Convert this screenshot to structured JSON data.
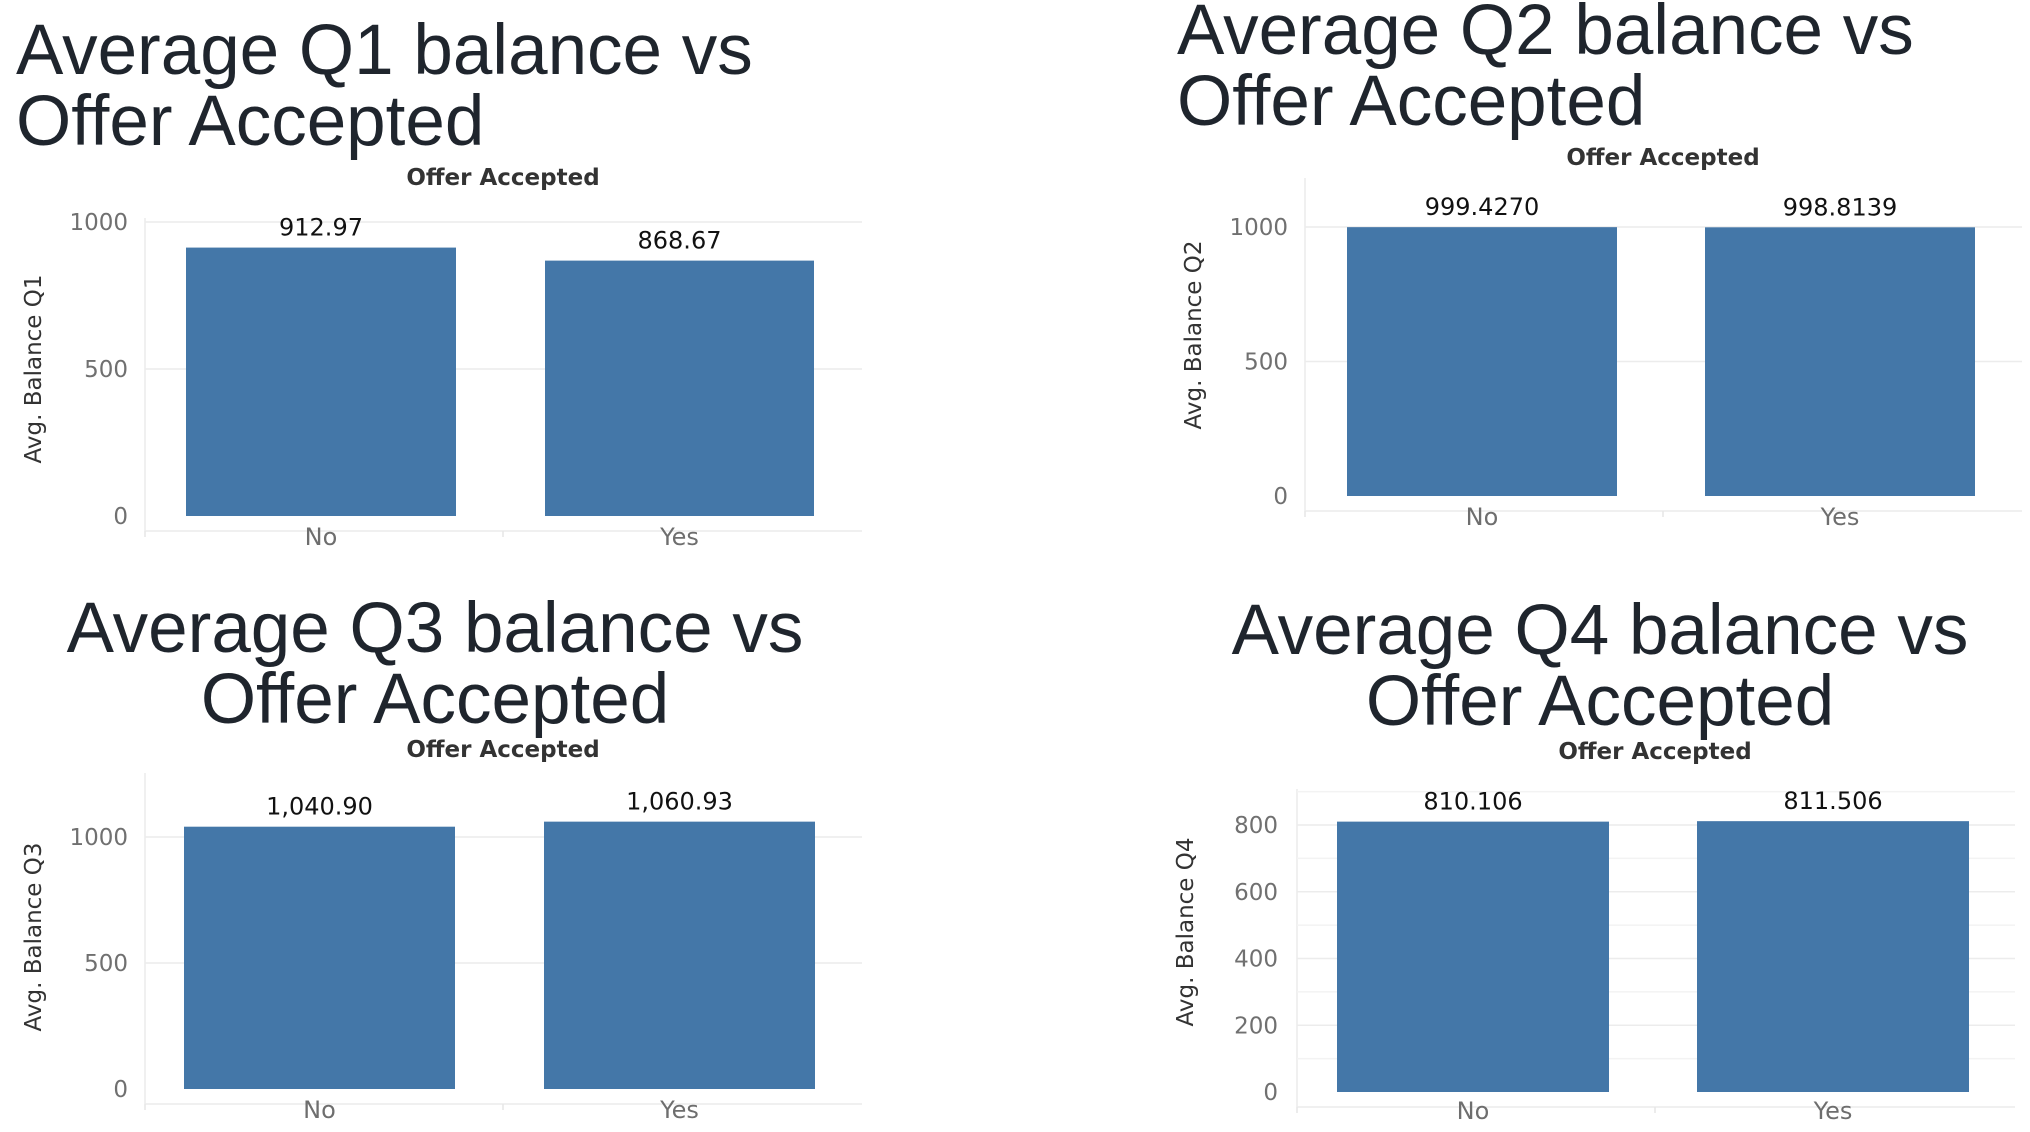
{
  "chart_data": [
    {
      "type": "bar",
      "title": "Average Q1 balance vs Offer Accepted",
      "header": "Offer Accepted",
      "ylabel": "Avg. Balance Q1",
      "xlabel": "",
      "categories": [
        "No",
        "Yes"
      ],
      "values": [
        912.97,
        868.67
      ],
      "data_labels": [
        "912.97",
        "868.67"
      ],
      "yticks": [
        0,
        500,
        1000
      ],
      "ytick_labels": [
        "0",
        "500",
        "1000"
      ],
      "ylim": [
        0,
        1000
      ],
      "color": "#4477a8",
      "grid": true
    },
    {
      "type": "bar",
      "title": "Average Q2 balance vs Offer Accepted",
      "header": "Offer Accepted",
      "ylabel": "Avg. Balance Q2",
      "xlabel": "",
      "categories": [
        "No",
        "Yes"
      ],
      "values": [
        999.427,
        998.8139
      ],
      "data_labels": [
        "999.4270",
        "998.8139"
      ],
      "yticks": [
        0,
        500,
        1000
      ],
      "ytick_labels": [
        "0",
        "500",
        "1000"
      ],
      "ylim": [
        0,
        1000
      ],
      "color": "#4477a8",
      "grid": true
    },
    {
      "type": "bar",
      "title": "Average Q3 balance vs Offer Accepted",
      "header": "Offer Accepted",
      "ylabel": "Avg. Balance Q3",
      "xlabel": "",
      "categories": [
        "No",
        "Yes"
      ],
      "values": [
        1040.9,
        1060.93
      ],
      "data_labels": [
        "1,040.90",
        "1,060.93"
      ],
      "yticks": [
        0,
        500,
        1000
      ],
      "ytick_labels": [
        "0",
        "500",
        "1000"
      ],
      "ylim": [
        0,
        1000
      ],
      "color": "#4477a8",
      "grid": true
    },
    {
      "type": "bar",
      "title": "Average Q4 balance vs Offer Accepted",
      "header": "Offer Accepted",
      "ylabel": "Avg. Balance Q4",
      "xlabel": "",
      "categories": [
        "No",
        "Yes"
      ],
      "values": [
        810.106,
        811.506
      ],
      "data_labels": [
        "810.106",
        "811.506"
      ],
      "yticks": [
        0,
        200,
        400,
        600,
        800
      ],
      "ytick_labels": [
        "0",
        "200",
        "400",
        "600",
        "800"
      ],
      "ylim": [
        0,
        800
      ],
      "color": "#4477a8",
      "grid": true
    }
  ]
}
